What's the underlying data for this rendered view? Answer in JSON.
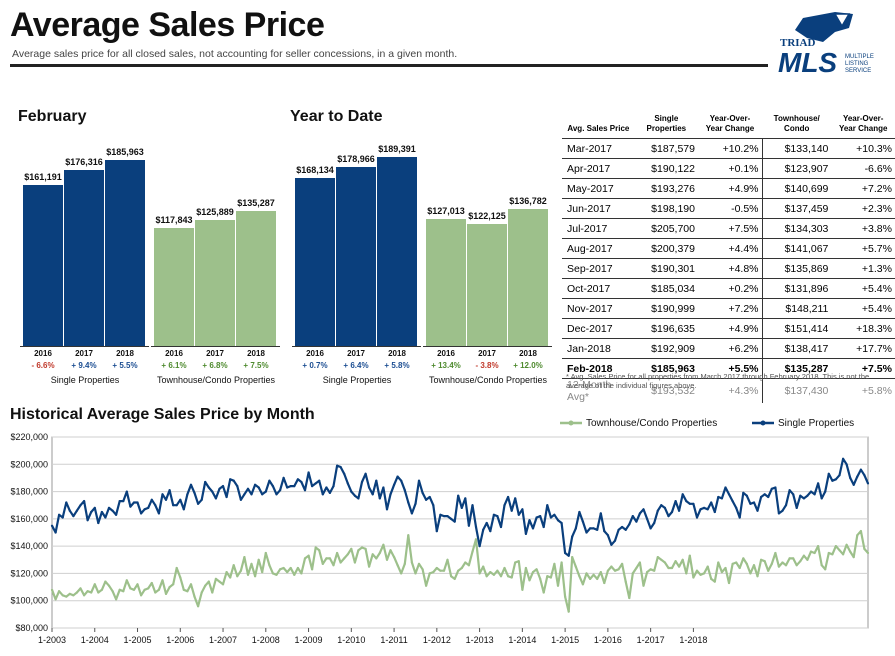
{
  "header": {
    "title": "Average Sales Price",
    "subtitle": "Average sales price for all closed sales, not accounting for seller concessions, in a given month."
  },
  "logo": {
    "line1": "TRIAD",
    "line2": "MLS",
    "line3": "MULTIPLE",
    "line4": "LISTING",
    "line5": "SERVICE"
  },
  "colors": {
    "single": "#0a3f7d",
    "townhouse": "#9dc08b",
    "positive": "#1c4e92",
    "pos_green": "#4e8a2e",
    "negative": "#c0392b"
  },
  "panels": [
    {
      "title": "February",
      "groups": [
        {
          "label": "Single Properties",
          "color": "single",
          "bars": [
            {
              "year": "2016",
              "value": 161191,
              "value_label": "$161,191",
              "change": "- 6.6%"
            },
            {
              "year": "2017",
              "value": 176316,
              "value_label": "$176,316",
              "change": "+ 9.4%"
            },
            {
              "year": "2018",
              "value": 185963,
              "value_label": "$185,963",
              "change": "+ 5.5%"
            }
          ]
        },
        {
          "label": "Townhouse/Condo Properties",
          "color": "townhouse",
          "bars": [
            {
              "year": "2016",
              "value": 117843,
              "value_label": "$117,843",
              "change": "+ 6.1%"
            },
            {
              "year": "2017",
              "value": 125889,
              "value_label": "$125,889",
              "change": "+ 6.8%"
            },
            {
              "year": "2018",
              "value": 135287,
              "value_label": "$135,287",
              "change": "+ 7.5%"
            }
          ]
        }
      ]
    },
    {
      "title": "Year to Date",
      "groups": [
        {
          "label": "Single Properties",
          "color": "single",
          "bars": [
            {
              "year": "2016",
              "value": 168134,
              "value_label": "$168,134",
              "change": "+ 0.7%"
            },
            {
              "year": "2017",
              "value": 178966,
              "value_label": "$178,966",
              "change": "+ 6.4%"
            },
            {
              "year": "2018",
              "value": 189391,
              "value_label": "$189,391",
              "change": "+ 5.8%"
            }
          ]
        },
        {
          "label": "Townhouse/Condo Properties",
          "color": "townhouse",
          "bars": [
            {
              "year": "2016",
              "value": 127013,
              "value_label": "$127,013",
              "change": "+ 13.4%"
            },
            {
              "year": "2017",
              "value": 122125,
              "value_label": "$122,125",
              "change": "- 3.8%"
            },
            {
              "year": "2018",
              "value": 136782,
              "value_label": "$136,782",
              "change": "+ 12.0%"
            }
          ]
        }
      ]
    }
  ],
  "table": {
    "headers": [
      "Avg. Sales Price",
      "Single Properties",
      "Year-Over-Year Change",
      "Townhouse/ Condo",
      "Year-Over-Year Change"
    ],
    "rows": [
      [
        "Mar-2017",
        "$187,579",
        "+10.2%",
        "$133,140",
        "+10.3%"
      ],
      [
        "Apr-2017",
        "$190,122",
        "+0.1%",
        "$123,907",
        "-6.6%"
      ],
      [
        "May-2017",
        "$193,276",
        "+4.9%",
        "$140,699",
        "+7.2%"
      ],
      [
        "Jun-2017",
        "$198,190",
        "-0.5%",
        "$137,459",
        "+2.3%"
      ],
      [
        "Jul-2017",
        "$205,700",
        "+7.5%",
        "$134,303",
        "+3.8%"
      ],
      [
        "Aug-2017",
        "$200,379",
        "+4.4%",
        "$141,067",
        "+5.7%"
      ],
      [
        "Sep-2017",
        "$190,301",
        "+4.8%",
        "$135,869",
        "+1.3%"
      ],
      [
        "Oct-2017",
        "$185,034",
        "+0.2%",
        "$131,896",
        "+5.4%"
      ],
      [
        "Nov-2017",
        "$190,999",
        "+7.2%",
        "$148,211",
        "+5.4%"
      ],
      [
        "Dec-2017",
        "$196,635",
        "+4.9%",
        "$151,414",
        "+18.3%"
      ],
      [
        "Jan-2018",
        "$192,909",
        "+6.2%",
        "$138,417",
        "+17.7%"
      ],
      [
        "Feb-2018",
        "$185,963",
        "+5.5%",
        "$135,287",
        "+7.5%"
      ]
    ],
    "avg_row": [
      "12-Month Avg*",
      "$193,532",
      "+4.3%",
      "$137,430",
      "+5.8%"
    ],
    "footnote": "* Avg. Sales Price for all properties from March 2017 through February 2018. This is not the average of the individual figures above."
  },
  "chart_data": {
    "type": "line",
    "title": "Historical Average Sales Price by Month",
    "ylim": [
      80000,
      220000
    ],
    "yticks": [
      80000,
      100000,
      120000,
      140000,
      160000,
      180000,
      200000,
      220000
    ],
    "ytick_labels": [
      "$80,000",
      "$100,000",
      "$120,000",
      "$140,000",
      "$160,000",
      "$180,000",
      "$200,000",
      "$220,000"
    ],
    "xtick_labels": [
      "1-2003",
      "1-2004",
      "1-2005",
      "1-2006",
      "1-2007",
      "1-2008",
      "1-2009",
      "1-2010",
      "1-2011",
      "1-2012",
      "1-2013",
      "1-2014",
      "1-2015",
      "1-2016",
      "1-2017",
      "1-2018"
    ],
    "x_start": "1-2003",
    "legend_position": "top-right",
    "series": [
      {
        "name": "Townhouse/Condo Properties",
        "color": "#9dc08b",
        "values": [
          108000,
          101000,
          107000,
          104000,
          103000,
          105000,
          104000,
          106000,
          109000,
          104000,
          107000,
          106000,
          112000,
          106000,
          108000,
          114000,
          111000,
          107000,
          101000,
          108000,
          107000,
          115000,
          109000,
          108000,
          112000,
          104000,
          108000,
          109000,
          113000,
          106000,
          108000,
          115000,
          105000,
          110000,
          112000,
          124000,
          117000,
          108000,
          107000,
          112000,
          103000,
          96000,
          106000,
          111000,
          114000,
          106000,
          116000,
          114000,
          112000,
          121000,
          117000,
          126000,
          118000,
          122000,
          132000,
          119000,
          127000,
          118000,
          130000,
          121000,
          135000,
          126000,
          120000,
          119000,
          123000,
          124000,
          121000,
          124000,
          119000,
          124000,
          120000,
          131000,
          133000,
          123000,
          139000,
          137000,
          127000,
          131000,
          131000,
          126000,
          135000,
          128000,
          131000,
          134000,
          138000,
          128000,
          137000,
          139000,
          138000,
          125000,
          134000,
          131000,
          135000,
          141000,
          130000,
          137000,
          132000,
          126000,
          120000,
          127000,
          148000,
          128000,
          120000,
          127000,
          123000,
          111000,
          120000,
          121000,
          124000,
          122000,
          122000,
          130000,
          118000,
          116000,
          122000,
          124000,
          128000,
          126000,
          136000,
          145000,
          120000,
          125000,
          118000,
          121000,
          119000,
          122000,
          118000,
          124000,
          118000,
          117000,
          128000,
          129000,
          108000,
          124000,
          115000,
          121000,
          123000,
          116000,
          106000,
          118000,
          117000,
          127000,
          111000,
          128000,
          103000,
          92000,
          132000,
          125000,
          118000,
          112000,
          120000,
          116000,
          119000,
          116000,
          121000,
          113000,
          122000,
          125000,
          122000,
          123000,
          127000,
          114000,
          102000,
          120000,
          124000,
          128000,
          111000,
          121000,
          123000,
          122000,
          132000,
          130000,
          128000,
          124000,
          124000,
          129000,
          125000,
          130000,
          120000,
          133000,
          117000,
          122000,
          119000,
          120000,
          125000,
          116000,
          114000,
          128000,
          121000,
          124000,
          113000,
          127000,
          128000,
          124000,
          131000,
          127000,
          120000,
          126000,
          118000,
          130000,
          129000,
          122000,
          127000,
          135000,
          125000,
          128000,
          126000,
          131000,
          131000,
          126000,
          129000,
          133000,
          130000,
          136000,
          135000,
          140000,
          126000,
          123000,
          135000,
          134000,
          140000,
          137000,
          134000,
          141000,
          136000,
          132000,
          148000,
          151000,
          138000,
          135000
        ]
      },
      {
        "name": "Single Properties",
        "color": "#0a3f7d",
        "values": [
          155000,
          150000,
          163000,
          161000,
          172000,
          166000,
          162000,
          166000,
          170000,
          173000,
          159000,
          165000,
          168000,
          157000,
          165000,
          161000,
          168000,
          166000,
          163000,
          173000,
          173000,
          180000,
          169000,
          172000,
          172000,
          164000,
          167000,
          168000,
          174000,
          170000,
          164000,
          178000,
          174000,
          181000,
          170000,
          170000,
          174000,
          167000,
          178000,
          185000,
          179000,
          171000,
          174000,
          187000,
          183000,
          180000,
          175000,
          182000,
          184000,
          176000,
          189000,
          188000,
          184000,
          174000,
          178000,
          182000,
          178000,
          185000,
          183000,
          178000,
          180000,
          188000,
          184000,
          178000,
          181000,
          190000,
          183000,
          184000,
          184000,
          189000,
          187000,
          181000,
          194000,
          184000,
          186000,
          188000,
          178000,
          183000,
          179000,
          184000,
          199000,
          198000,
          193000,
          186000,
          180000,
          177000,
          175000,
          187000,
          193000,
          183000,
          178000,
          188000,
          175000,
          183000,
          167000,
          178000,
          185000,
          191000,
          188000,
          181000,
          172000,
          164000,
          171000,
          188000,
          179000,
          174000,
          176000,
          170000,
          151000,
          163000,
          162000,
          162000,
          160000,
          158000,
          177000,
          168000,
          175000,
          155000,
          170000,
          154000,
          140000,
          152000,
          157000,
          151000,
          163000,
          162000,
          154000,
          170000,
          176000,
          166000,
          175000,
          163000,
          167000,
          149000,
          159000,
          153000,
          161000,
          162000,
          154000,
          170000,
          161000,
          163000,
          159000,
          157000,
          135000,
          133000,
          147000,
          153000,
          165000,
          158000,
          150000,
          153000,
          153000,
          152000,
          164000,
          151000,
          148000,
          141000,
          144000,
          152000,
          154000,
          152000,
          156000,
          162000,
          158000,
          164000,
          167000,
          160000,
          153000,
          157000,
          166000,
          170000,
          168000,
          162000,
          165000,
          173000,
          166000,
          178000,
          173000,
          171000,
          171000,
          161000,
          167000,
          168000,
          167000,
          172000,
          165000,
          176000,
          175000,
          183000,
          178000,
          173000,
          168000,
          161000,
          179000,
          177000,
          171000,
          172000,
          166000,
          176000,
          178000,
          176000,
          182000,
          183000,
          164000,
          166000,
          170000,
          181000,
          178000,
          168000,
          177000,
          175000,
          177000,
          180000,
          178000,
          186000,
          175000,
          180000,
          193000,
          188000,
          189000,
          192000,
          204000,
          200000,
          190000,
          185000,
          191000,
          196000,
          192000,
          186000
        ]
      }
    ]
  }
}
